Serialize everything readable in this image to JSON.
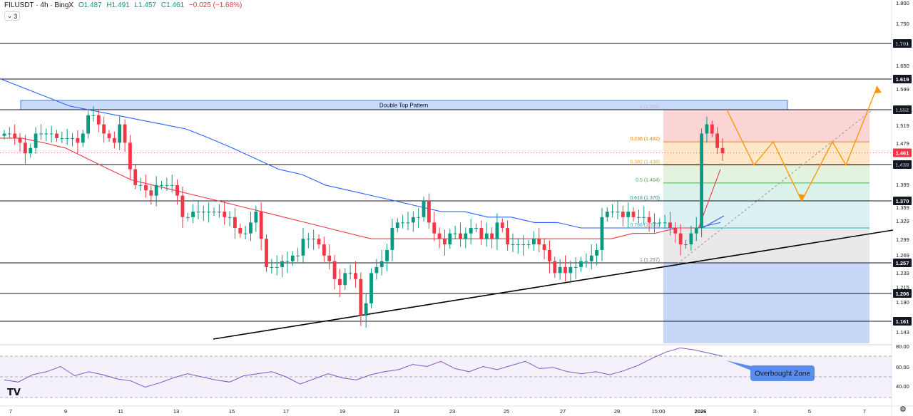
{
  "header": {
    "symbol": "FILUSDT · 4h · BingX",
    "open": "O1.487",
    "high": "H1.491",
    "low": "L1.457",
    "close": "C1.461",
    "change": "−0.025 (−1.68%)",
    "indicators_count": "3"
  },
  "colors": {
    "up": "#089981",
    "down": "#f23645",
    "ema_fast": "#f23645",
    "ema_slow": "#2962ff",
    "trendline": "#000000",
    "projection": "#ff9800",
    "rsi": "#7e57c2",
    "callout": "#5b8def"
  },
  "chart_data": {
    "type": "candlestick",
    "symbol": "FILUSDT",
    "interval": "4h",
    "exchange": "BingX",
    "y_axis_ticks": [
      "1.800",
      "1.750",
      "1.700",
      "1.650",
      "1.599",
      "1.552",
      "1.519",
      "1.479",
      "1.439",
      "1.399",
      "1.359",
      "1.329",
      "1.299",
      "1.269",
      "1.239",
      "1.215",
      "1.190",
      "1.143"
    ],
    "x_axis_ticks": [
      "7",
      "9",
      "11",
      "13",
      "15",
      "17",
      "19",
      "21",
      "23",
      "25",
      "27",
      "29",
      "15:00",
      "2026",
      "3",
      "5",
      "7"
    ],
    "horizontal_levels": [
      "1.701",
      "1.619",
      "1.552",
      "1.439",
      "1.370",
      "1.257",
      "1.206",
      "1.161"
    ],
    "last_price": "1.461",
    "annotations": {
      "double_top": "Double Top Pattern",
      "overbought": "Overbought Zone"
    },
    "fibonacci": [
      {
        "label": "0 (1.552)",
        "value": 1.552
      },
      {
        "label": "0.236 (1.482)",
        "value": 1.482
      },
      {
        "label": "0.382 (1.438)",
        "value": 1.438
      },
      {
        "label": "0.5 (1.404)",
        "value": 1.404
      },
      {
        "label": "0.618 (1.370)",
        "value": 1.37
      },
      {
        "label": "0.786 (1.320)",
        "value": 1.32
      },
      {
        "label": "1 (1.257)",
        "value": 1.257
      }
    ],
    "series": [
      {
        "type": "candles",
        "values": [
          1.5,
          1.5,
          1.49,
          1.48,
          1.46,
          1.47,
          1.5,
          1.5,
          1.5,
          1.5,
          1.49,
          1.49,
          1.49,
          1.49,
          1.48,
          1.5,
          1.54,
          1.54,
          1.52,
          1.5,
          1.49,
          1.48,
          1.52,
          1.48,
          1.43,
          1.4,
          1.4,
          1.39,
          1.38,
          1.4,
          1.4,
          1.4,
          1.4,
          1.38,
          1.34,
          1.34,
          1.35,
          1.35,
          1.35,
          1.35,
          1.35,
          1.35,
          1.34,
          1.34,
          1.32,
          1.31,
          1.31,
          1.33,
          1.35,
          1.3,
          1.25,
          1.25,
          1.25,
          1.26,
          1.26,
          1.27,
          1.27,
          1.3,
          1.3,
          1.3,
          1.29,
          1.27,
          1.26,
          1.23,
          1.22,
          1.24,
          1.24,
          1.23,
          1.17,
          1.19,
          1.24,
          1.25,
          1.26,
          1.28,
          1.32,
          1.33,
          1.33,
          1.33,
          1.34,
          1.34,
          1.37,
          1.33,
          1.31,
          1.3,
          1.29,
          1.31,
          1.31,
          1.3,
          1.31,
          1.32,
          1.32,
          1.3,
          1.31,
          1.3,
          1.33,
          1.32,
          1.29,
          1.29,
          1.29,
          1.29,
          1.29,
          1.3,
          1.29,
          1.28,
          1.26,
          1.24,
          1.25,
          1.24,
          1.25,
          1.25,
          1.26,
          1.26,
          1.27,
          1.28,
          1.34,
          1.35,
          1.35,
          1.35,
          1.34,
          1.35,
          1.34,
          1.34,
          1.34,
          1.33,
          1.33,
          1.33,
          1.33,
          1.32,
          1.31,
          1.29,
          1.29,
          1.31,
          1.32,
          1.5,
          1.52,
          1.5,
          1.47,
          1.46
        ]
      },
      {
        "name": "EMA 50",
        "type": "line",
        "values": [
          1.49,
          1.49,
          1.48,
          1.47,
          1.45,
          1.43,
          1.41,
          1.4,
          1.39,
          1.38,
          1.37,
          1.36,
          1.35,
          1.34,
          1.33,
          1.32,
          1.31,
          1.3,
          1.3,
          1.3,
          1.3,
          1.3,
          1.3,
          1.3,
          1.3,
          1.3,
          1.3,
          1.3,
          1.3,
          1.31,
          1.31,
          1.32,
          1.32,
          1.43
        ]
      },
      {
        "name": "EMA 200",
        "type": "line",
        "values": [
          1.62,
          1.6,
          1.58,
          1.56,
          1.55,
          1.54,
          1.53,
          1.52,
          1.51,
          1.49,
          1.47,
          1.45,
          1.43,
          1.42,
          1.4,
          1.39,
          1.38,
          1.37,
          1.36,
          1.35,
          1.35,
          1.34,
          1.34,
          1.33,
          1.33,
          1.32,
          1.32,
          1.32,
          1.32,
          1.32,
          1.32,
          1.33
        ]
      },
      {
        "name": "Projection",
        "type": "line",
        "values": [
          1.552,
          1.438,
          1.482,
          1.37,
          1.482,
          1.438,
          1.599
        ]
      },
      {
        "name": "RSI",
        "type": "line",
        "values": [
          47,
          45,
          52,
          55,
          60,
          51,
          55,
          52,
          48,
          46,
          40,
          44,
          49,
          53,
          50,
          47,
          45,
          51,
          53,
          55,
          50,
          43,
          48,
          53,
          49,
          47,
          52,
          55,
          57,
          62,
          60,
          65,
          58,
          55,
          60,
          57,
          61,
          65,
          58,
          59,
          55,
          53,
          55,
          52,
          56,
          61,
          68,
          74,
          78,
          76,
          73,
          70
        ]
      }
    ],
    "rsi_axis_ticks": [
      "80.00",
      "60.00",
      "40.00"
    ],
    "rsi_levels": [
      70,
      50,
      30
    ]
  }
}
